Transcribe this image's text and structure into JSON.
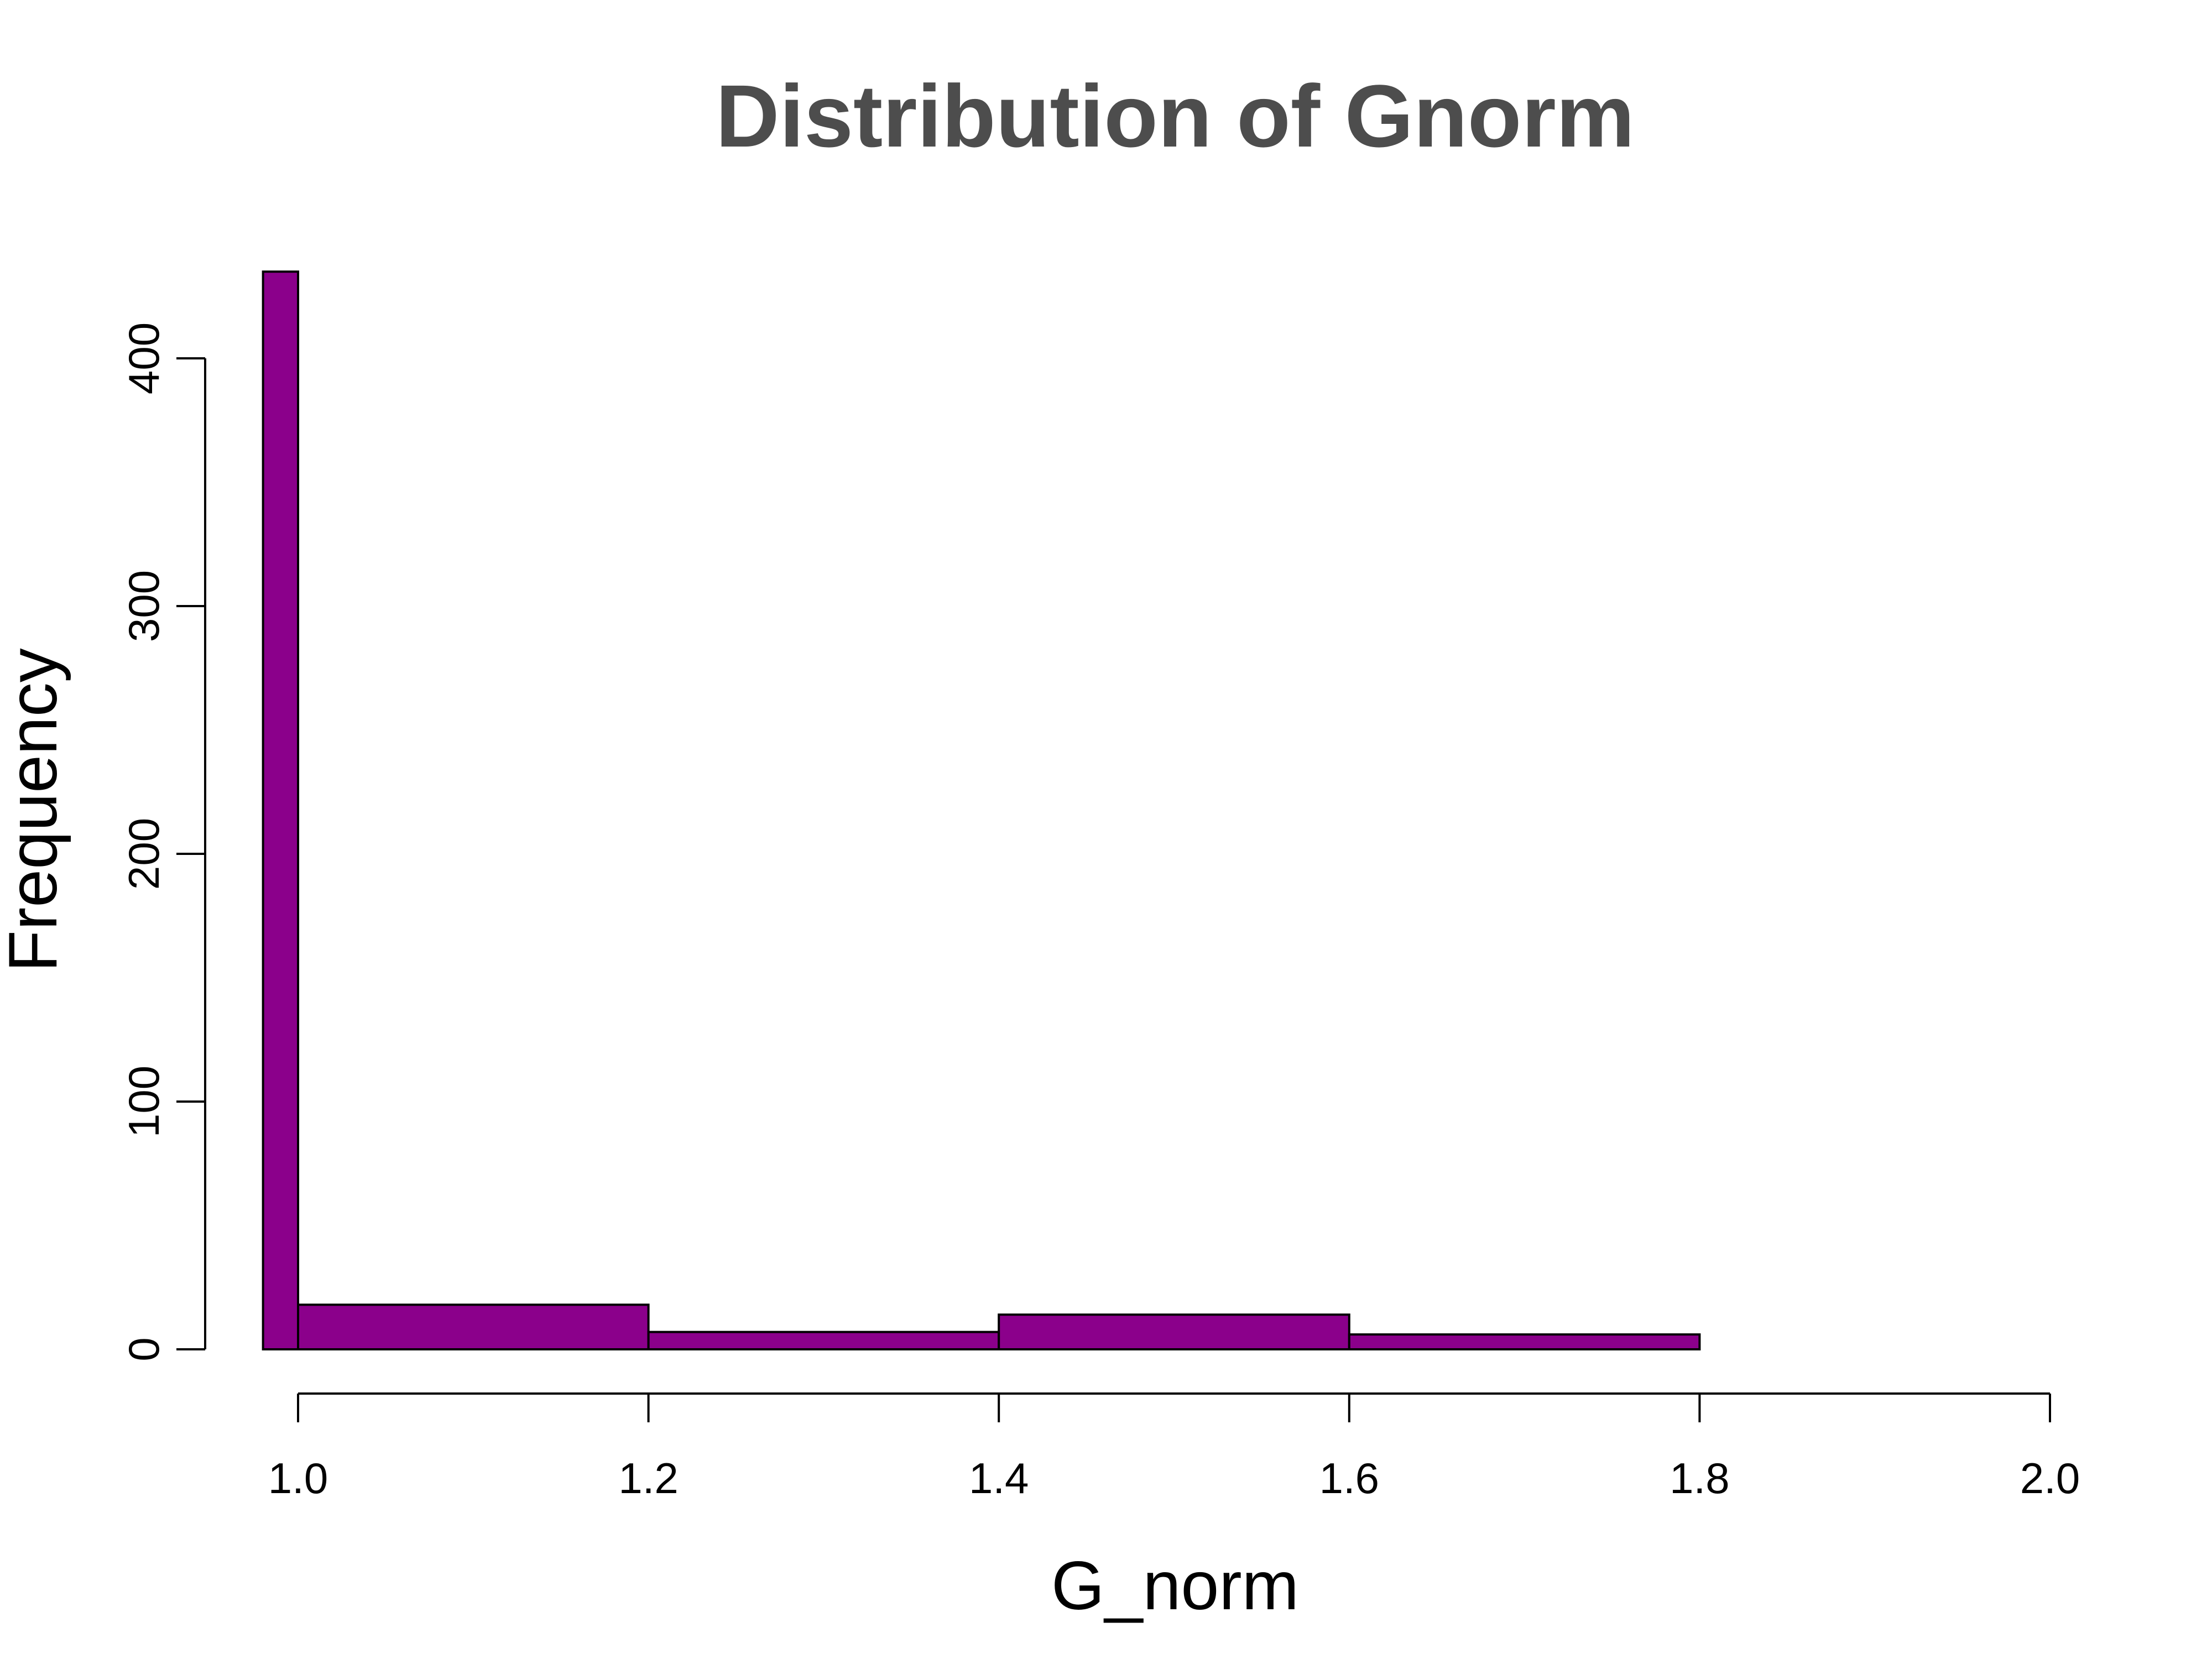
{
  "chart_data": {
    "type": "bar",
    "title": "Distribution of Gnorm",
    "xlabel": "G_norm",
    "ylabel": "Frequency",
    "bins": [
      {
        "start": 0.98,
        "end": 1.0,
        "count": 435
      },
      {
        "start": 1.0,
        "end": 1.2,
        "count": 18
      },
      {
        "start": 1.2,
        "end": 1.4,
        "count": 7
      },
      {
        "start": 1.4,
        "end": 1.6,
        "count": 14
      },
      {
        "start": 1.6,
        "end": 1.8,
        "count": 6
      }
    ],
    "xlim": [
      0.98,
      2.0
    ],
    "ylim": [
      0,
      435
    ],
    "x_ticks": [
      "1.0",
      "1.2",
      "1.4",
      "1.6",
      "1.8",
      "2.0"
    ],
    "y_ticks": [
      "0",
      "100",
      "200",
      "300",
      "400"
    ],
    "grid": false,
    "colors": {
      "bar_fill": "#8B008B",
      "bar_border": "#000000",
      "title": "#4D4D4D",
      "axis": "#000000"
    }
  }
}
